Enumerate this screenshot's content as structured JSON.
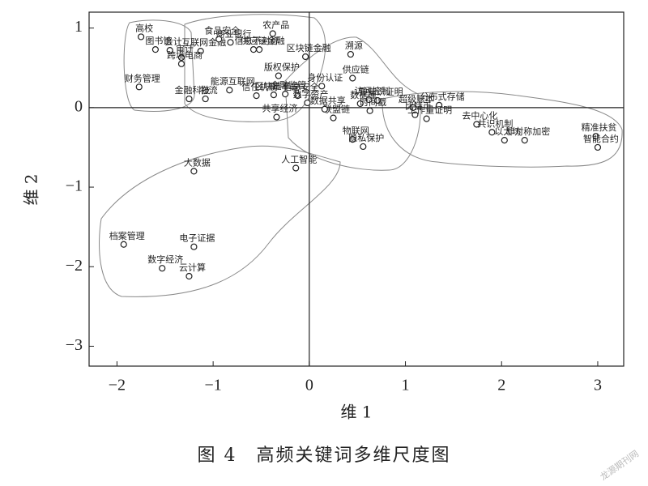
{
  "chart_data": {
    "type": "scatter",
    "caption": "图 4　高频关键词多维尺度图",
    "x_label": "维 1",
    "y_label": "维 2",
    "watermark": "龙源期刊网",
    "labels": [
      "高校",
      "图书馆",
      "会计",
      "审计",
      "互联网金融",
      "跨境电商",
      "财务管理",
      "金融科技",
      "物流",
      "食品安全",
      "商业银行",
      "能源互联网",
      "信任机制",
      "区块链平台",
      "金融监管",
      "信息安全",
      "农产品",
      "信息不对称",
      "供应链金融",
      "版权保护",
      "区块链金融",
      "溯源",
      "供应链",
      "访问控制",
      "身份认证",
      "数据库",
      "零知识证明",
      "超级账本",
      "分布式存储",
      "联盟链",
      "数字资产",
      "共享经济",
      "数据共享",
      "时间戳",
      "比特币",
      "工作量证明",
      "去中心化",
      "共识机制",
      "以太坊",
      "非对称加密",
      "精准扶贫",
      "智能合约",
      "物联网",
      "隐私保护",
      "人工智能",
      "大数据",
      "档案管理",
      "电子证据",
      "数字经济",
      "云计算"
    ],
    "x": [
      -1.75,
      -1.6,
      -1.45,
      -1.33,
      -1.13,
      -1.33,
      -1.77,
      -1.25,
      -1.08,
      -0.94,
      -0.82,
      -0.83,
      -0.55,
      -0.37,
      -0.25,
      -0.12,
      -0.38,
      -0.58,
      -0.52,
      -0.32,
      -0.04,
      0.43,
      0.45,
      0.62,
      0.13,
      0.53,
      0.71,
      1.08,
      1.35,
      0.25,
      -0.02,
      -0.34,
      0.16,
      0.63,
      1.1,
      1.22,
      1.74,
      1.9,
      2.03,
      2.24,
      2.98,
      3.0,
      0.45,
      0.56,
      -0.14,
      -1.2,
      -1.93,
      -1.2,
      -1.53,
      -1.25
    ],
    "values": [
      0.89,
      0.73,
      0.72,
      0.63,
      0.71,
      0.55,
      0.26,
      0.11,
      0.11,
      0.86,
      0.82,
      0.22,
      0.15,
      0.16,
      0.17,
      0.15,
      0.93,
      0.73,
      0.73,
      0.4,
      0.64,
      0.67,
      0.37,
      0.1,
      0.27,
      0.05,
      0.09,
      0.0,
      0.03,
      -0.13,
      0.06,
      -0.12,
      -0.02,
      -0.04,
      -0.09,
      -0.14,
      -0.21,
      -0.31,
      -0.41,
      -0.41,
      -0.36,
      -0.5,
      -0.4,
      -0.49,
      -0.76,
      -0.8,
      -1.72,
      -1.75,
      -2.02,
      -2.12
    ],
    "xlim": [
      -2.29,
      3.27
    ],
    "ylim": [
      -3.25,
      1.2
    ],
    "xticks": [
      {
        "value": -2,
        "label": "−2"
      },
      {
        "value": -1,
        "label": "−1"
      },
      0,
      1,
      2,
      3
    ],
    "yticks": [
      {
        "value": -3,
        "label": "−3"
      },
      {
        "value": -2,
        "label": "−2"
      },
      {
        "value": -1,
        "label": "−1"
      },
      0,
      1
    ],
    "color": "#222222"
  }
}
